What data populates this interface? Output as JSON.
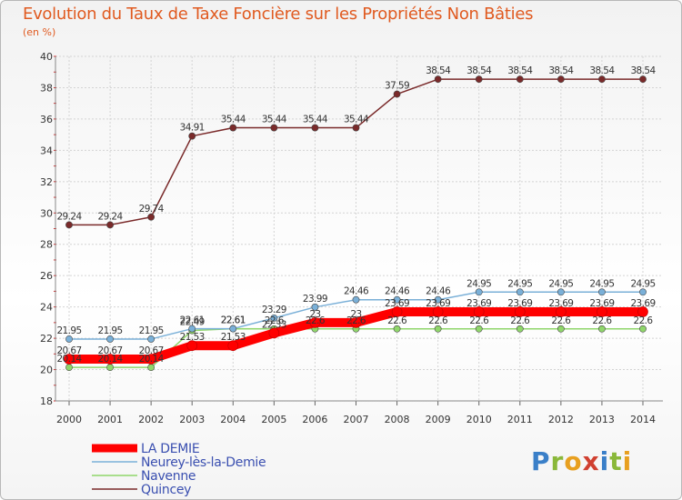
{
  "chart_data": {
    "type": "line",
    "title": "Evolution du Taux de Taxe Foncière sur les Propriétés Non Bâties",
    "subtitle": "(en %)",
    "x": [
      "2000",
      "2001",
      "2002",
      "2003",
      "2004",
      "2005",
      "2006",
      "2007",
      "2008",
      "2009",
      "2010",
      "2011",
      "2012",
      "2013",
      "2014"
    ],
    "ylim": [
      18,
      40
    ],
    "yticks": [
      18,
      20,
      22,
      24,
      26,
      28,
      30,
      32,
      34,
      36,
      38,
      40
    ],
    "grid": true,
    "legend_position": "bottom-left",
    "series": [
      {
        "name": "LA DEMIE",
        "color": "#ff0000",
        "values": [
          20.67,
          20.67,
          20.67,
          21.53,
          21.53,
          22.33,
          23,
          23,
          23.69,
          23.69,
          23.69,
          23.69,
          23.69,
          23.69,
          23.69
        ],
        "labels": [
          "20.67",
          "20.67",
          "20.67",
          "21.53",
          "21.53",
          "22.33",
          "23",
          "23",
          "23.69",
          "23.69",
          "23.69",
          "23.69",
          "23.69",
          "23.69",
          "23.69"
        ]
      },
      {
        "name": "Neurey-lès-la-Demie",
        "color": "#7ab0d8",
        "values": [
          21.95,
          21.95,
          21.95,
          22.61,
          22.61,
          23.29,
          23.99,
          24.46,
          24.46,
          24.46,
          24.95,
          24.95,
          24.95,
          24.95,
          24.95
        ],
        "labels": [
          "21.95",
          "21.95",
          "21.95",
          "22.61",
          "22.61",
          "23.29",
          "23.99",
          "24.46",
          "24.46",
          "24.46",
          "24.95",
          "24.95",
          "24.95",
          "24.95",
          "24.95"
        ]
      },
      {
        "name": "Navenne",
        "color": "#8fd66a",
        "values": [
          20.14,
          20.14,
          20.14,
          22.49,
          22.61,
          22.6,
          22.6,
          22.6,
          22.6,
          22.6,
          22.6,
          22.6,
          22.6,
          22.6,
          22.6
        ],
        "labels": [
          "20.14",
          "20.14",
          "20.14",
          "22.49",
          "22.61",
          "22.6",
          "22.6",
          "22.6",
          "22.6",
          "22.6",
          "22.6",
          "22.6",
          "22.6",
          "22.6",
          "22.6"
        ]
      },
      {
        "name": "Quincey",
        "color": "#7a2a2a",
        "values": [
          29.24,
          29.24,
          29.74,
          34.91,
          35.44,
          35.44,
          35.44,
          35.44,
          37.59,
          38.54,
          38.54,
          38.54,
          38.54,
          38.54,
          38.54
        ],
        "labels": [
          "29.24",
          "29.24",
          "29.74",
          "34.91",
          "35.44",
          "35.44",
          "35.44",
          "35.44",
          "37.59",
          "38.54",
          "38.54",
          "38.54",
          "38.54",
          "38.54",
          "38.54"
        ]
      }
    ]
  },
  "logo": {
    "letters": [
      "P",
      "r",
      "o",
      "x",
      "i",
      "t",
      "i"
    ],
    "colors": [
      "#3a7fc8",
      "#8ab83a",
      "#e8a020",
      "#d04030",
      "#3a7fc8",
      "#8ab83a",
      "#e8a020"
    ]
  }
}
